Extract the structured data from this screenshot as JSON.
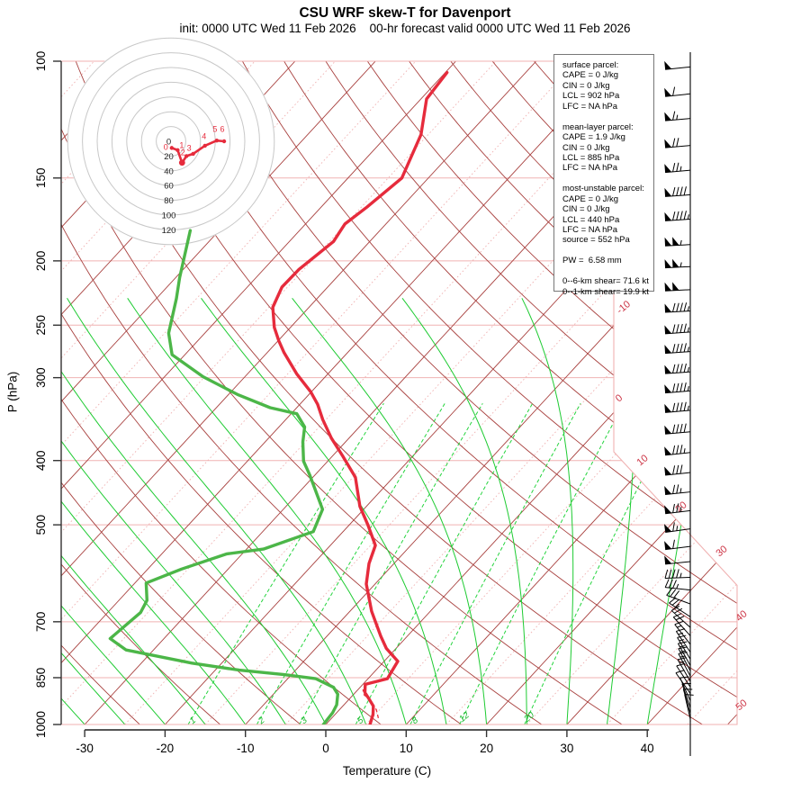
{
  "title": "CSU WRF skew-T for Davenport",
  "subtitle": "init: 0000 UTC Wed 11 Feb 2026    00-hr forecast valid 0000 UTC Wed 11 Feb 2026",
  "axes": {
    "x_label": "Temperature (C)",
    "y_label": "P (hPa)",
    "x_ticks": [
      -30,
      -20,
      -10,
      0,
      10,
      20,
      30,
      40
    ],
    "pressure_ticks": [
      100,
      150,
      200,
      250,
      300,
      400,
      500,
      700,
      850,
      1000
    ],
    "isotherm_edge_labels": [
      "-10",
      "0",
      "10",
      "20",
      "30",
      "40",
      "50"
    ],
    "mixing_ratio_labels": [
      1,
      2,
      3,
      5,
      8,
      12,
      20
    ]
  },
  "info_box": {
    "lines": [
      "surface parcel:",
      "CAPE = 0 J/kg",
      "CIN = 0 J/kg",
      "LCL = 902 hPa",
      "LFC = NA hPa",
      "",
      "mean-layer parcel:",
      "CAPE = 1.9 J/kg",
      "CIN = 0 J/kg",
      "LCL = 885 hPa",
      "LFC = NA hPa",
      "",
      "most-unstable parcel:",
      "CAPE = 0 J/kg",
      "CIN = 0 J/kg",
      "LCL = 440 hPa",
      "LFC = NA hPa",
      "source = 552 hPa",
      "",
      "PW =  6.58 mm",
      "",
      "0--6-km shear= 71.6 kt",
      "0--1-km shear= 19.9 kt"
    ]
  },
  "chart_data": {
    "type": "line",
    "title": "CSU WRF skew-T for Davenport",
    "xlabel": "Temperature (C)",
    "ylabel": "P (hPa)",
    "x_range_C": [
      -35,
      50
    ],
    "p_range_hPa": [
      100,
      1000
    ],
    "temperature_profile_p_T": [
      [
        104,
        -59.8
      ],
      [
        114,
        -59.3
      ],
      [
        129,
        -55.9
      ],
      [
        150,
        -53.3
      ],
      [
        166,
        -54.3
      ],
      [
        176,
        -55.1
      ],
      [
        187,
        -54.5
      ],
      [
        206,
        -55.6
      ],
      [
        219,
        -55.7
      ],
      [
        235,
        -54.5
      ],
      [
        252,
        -52.0
      ],
      [
        264,
        -49.9
      ],
      [
        275,
        -47.9
      ],
      [
        296,
        -43.9
      ],
      [
        315,
        -40.1
      ],
      [
        329,
        -37.8
      ],
      [
        347,
        -35.4
      ],
      [
        370,
        -32.2
      ],
      [
        394,
        -28.7
      ],
      [
        424,
        -24.7
      ],
      [
        469,
        -20.8
      ],
      [
        500,
        -17.7
      ],
      [
        537,
        -14.4
      ],
      [
        572,
        -13.1
      ],
      [
        614,
        -11.1
      ],
      [
        675,
        -7.3
      ],
      [
        736,
        -3.3
      ],
      [
        768,
        -1.2
      ],
      [
        803,
        1.7
      ],
      [
        853,
        2.4
      ],
      [
        870,
        0.3
      ],
      [
        895,
        1.2
      ],
      [
        916,
        2.5
      ],
      [
        938,
        3.8
      ],
      [
        965,
        4.7
      ],
      [
        1000,
        5.5
      ]
    ],
    "dewpoint_profile_p_T": [
      [
        180,
        -73.6
      ],
      [
        212,
        -69.5
      ],
      [
        228,
        -67.5
      ],
      [
        257,
        -64.5
      ],
      [
        277,
        -61.6
      ],
      [
        299,
        -55.2
      ],
      [
        318,
        -48.9
      ],
      [
        333,
        -43.3
      ],
      [
        340,
        -39.3
      ],
      [
        356,
        -36.8
      ],
      [
        375,
        -35.3
      ],
      [
        401,
        -33.0
      ],
      [
        421,
        -30.6
      ],
      [
        474,
        -25.1
      ],
      [
        512,
        -23.7
      ],
      [
        544,
        -27.9
      ],
      [
        553,
        -31.9
      ],
      [
        583,
        -35.8
      ],
      [
        612,
        -38.6
      ],
      [
        650,
        -36.5
      ],
      [
        678,
        -35.9
      ],
      [
        742,
        -36.7
      ],
      [
        772,
        -33.4
      ],
      [
        808,
        -23.7
      ],
      [
        828,
        -17.0
      ],
      [
        841,
        -10.9
      ],
      [
        853,
        -6.5
      ],
      [
        879,
        -3.3
      ],
      [
        900,
        -2.0
      ],
      [
        934,
        -0.9
      ],
      [
        960,
        -0.5
      ],
      [
        1000,
        -0.3
      ]
    ],
    "parcel_trace_p_T": [
      [
        978,
        5.8
      ],
      [
        950,
        4.6
      ],
      [
        920,
        2.8
      ],
      [
        900,
        1.2
      ],
      [
        885,
        0.6
      ]
    ],
    "wind_barbs_p_spd_dir": [
      [
        102,
        50,
        264
      ],
      [
        112,
        60,
        264
      ],
      [
        122,
        65,
        265
      ],
      [
        134,
        70,
        265
      ],
      [
        146,
        75,
        265
      ],
      [
        159,
        90,
        266
      ],
      [
        173,
        95,
        266
      ],
      [
        189,
        105,
        267
      ],
      [
        204,
        105,
        267
      ],
      [
        221,
        100,
        267
      ],
      [
        238,
        95,
        267
      ],
      [
        256,
        95,
        266
      ],
      [
        274,
        95,
        266
      ],
      [
        294,
        95,
        266
      ],
      [
        314,
        95,
        265
      ],
      [
        336,
        95,
        265
      ],
      [
        362,
        90,
        265
      ],
      [
        389,
        85,
        264
      ],
      [
        417,
        80,
        264
      ],
      [
        446,
        75,
        264
      ],
      [
        476,
        75,
        263
      ],
      [
        507,
        65,
        262
      ],
      [
        539,
        60,
        263
      ],
      [
        568,
        50,
        264
      ],
      [
        600,
        45,
        268
      ],
      [
        627,
        35,
        276
      ],
      [
        658,
        30,
        290
      ],
      [
        688,
        25,
        303
      ],
      [
        714,
        20,
        312
      ],
      [
        735,
        20,
        318
      ],
      [
        757,
        15,
        322
      ],
      [
        778,
        15,
        326
      ],
      [
        797,
        15,
        329
      ],
      [
        815,
        15,
        331
      ],
      [
        830,
        14,
        332
      ],
      [
        845,
        14,
        332
      ],
      [
        861,
        13,
        330
      ],
      [
        878,
        12,
        327
      ],
      [
        898,
        12,
        325
      ],
      [
        921,
        11,
        336
      ],
      [
        943,
        10,
        341
      ],
      [
        962,
        10,
        344
      ],
      [
        981,
        9,
        347
      ]
    ],
    "hodograph": {
      "units": "kt",
      "ring_interval_kt": 20,
      "ring_count": 7,
      "axis_labels": [
        "0",
        "20",
        "40",
        "60",
        "80",
        "100",
        "120"
      ],
      "trace_uv_kt": [
        {
          "u": 1,
          "v": -9,
          "label": "0"
        },
        {
          "u": 9,
          "v": -12,
          "label": "1"
        },
        {
          "u": 15,
          "v": -29,
          "label": null
        },
        {
          "u": 21,
          "v": -20,
          "label": "2"
        },
        {
          "u": 30,
          "v": -17,
          "label": "3"
        },
        {
          "u": 46,
          "v": -6,
          "label": "4"
        },
        {
          "u": 62,
          "v": 1,
          "label": "5"
        },
        {
          "u": 72,
          "v": 0,
          "label": "6"
        }
      ]
    },
    "background_lines": {
      "isotherms_C_step": 10,
      "minor_isotherms_C_step": 5,
      "dry_adiabats_K": [
        240,
        450,
        10
      ],
      "moist_adiabats_C": [
        -40,
        40,
        5
      ],
      "mixing_ratio_g_kg": [
        1,
        2,
        3,
        5,
        8,
        12,
        20
      ]
    },
    "colors": {
      "temperature": "#e62b3c",
      "dewpoint": "#4cb648",
      "parcel": "#e62b3c",
      "isotherm": "#a8403e",
      "isotherm_minor": "#f0b2b2",
      "isobar": "#f0b2b2",
      "dry_adiabat": "#a8403e",
      "moist_adiabat": "#1ecb32",
      "mixing_ratio": "#25d43e",
      "edge_label": "#cc3344",
      "mixing_label": "#1fb832",
      "barb": "#000000",
      "hodograph_ring": "#c8c8c8",
      "hodograph_trace": "#e62b3c"
    }
  }
}
